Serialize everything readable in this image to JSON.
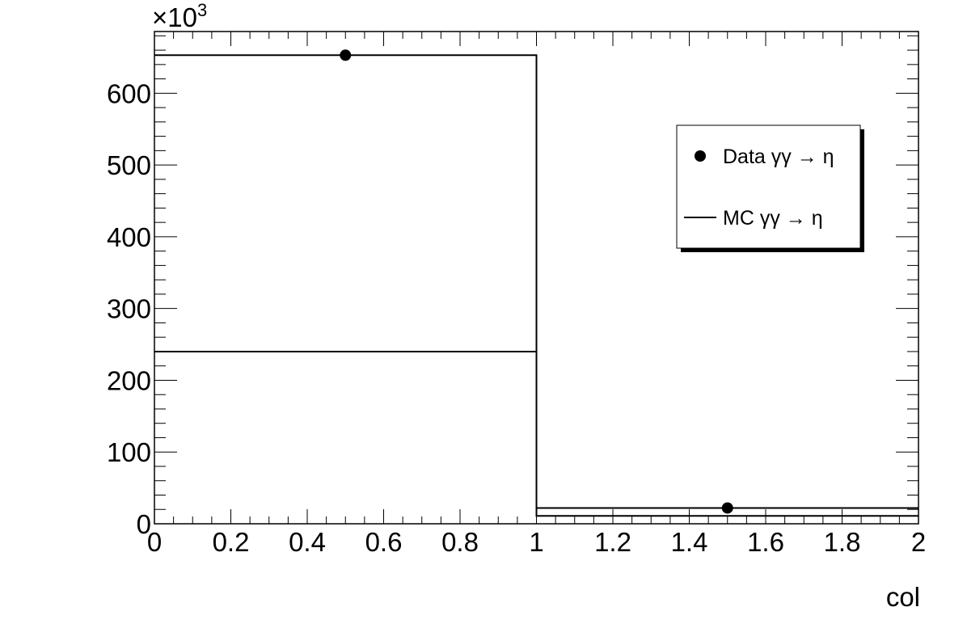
{
  "chart_data": {
    "type": "histogram",
    "xlabel": "col",
    "ylabel": "",
    "y_multiplier_label": {
      "prefix": "×10",
      "exponent": "3"
    },
    "xlim": [
      0,
      2
    ],
    "ylim": [
      0,
      686
    ],
    "x_ticks": [
      "0",
      "0.2",
      "0.4",
      "0.6",
      "0.8",
      "1",
      "1.2",
      "1.4",
      "1.6",
      "1.8",
      "2"
    ],
    "y_ticks": [
      "0",
      "100",
      "200",
      "300",
      "400",
      "500",
      "600"
    ],
    "bins": [
      [
        0,
        1
      ],
      [
        1,
        2
      ]
    ],
    "series": [
      {
        "name": "Data γγ → η",
        "style": "markers",
        "x": [
          0.5,
          1.5
        ],
        "values": [
          653,
          22
        ]
      },
      {
        "name": "MC γγ → η",
        "style": "step",
        "x": [
          0.5,
          1.5
        ],
        "values": [
          653,
          22
        ]
      },
      {
        "style": "step",
        "x": [
          0.5,
          1.5
        ],
        "values": [
          240,
          11
        ]
      }
    ],
    "legend": {
      "position": "top-right"
    },
    "grid": false
  }
}
